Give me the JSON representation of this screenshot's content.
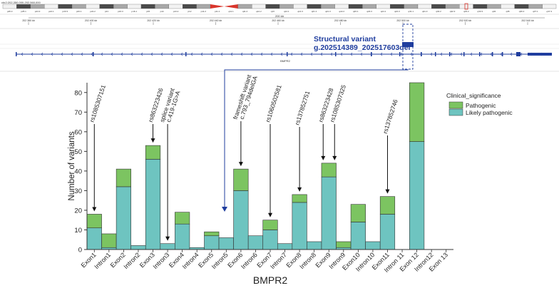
{
  "genome_browser": {
    "locus_text": "chr2:202,350,000-202,560,000",
    "scale_text": "200 kb",
    "gene_label": "BMPR2",
    "ideogram_bands": [
      "p25.3",
      "p25.1",
      "p24.3",
      "p24.1",
      "p23.3",
      "p23.1",
      "p22.2",
      "p21",
      "p16.3",
      "p16.1",
      "p15",
      "p14",
      "p13.2",
      "p12",
      "p11.2",
      "p11.1",
      "q11.1",
      "q11.2",
      "q12.2",
      "q13",
      "q14.1",
      "q14.3",
      "q21.1",
      "q21.3",
      "q22.2",
      "q23.1",
      "q23.3",
      "q24.1",
      "q24.3",
      "q31.1",
      "q31.3",
      "q32.2",
      "q32.3",
      "q33.2",
      "q33.3",
      "q34",
      "q35",
      "q36.2",
      "q37.1",
      "q37.3"
    ],
    "ruler_ticks": [
      "202 380 kb",
      "202 400 kb",
      "202 420 kb",
      "202 440 kb",
      "202 460 kb",
      "202 480 kb",
      "202 500 kb",
      "202 520 kb",
      "202 540 kb"
    ],
    "structural_variant_title": "Structural variant",
    "structural_variant_name": "g.202514389_202517603del"
  },
  "chart_data": {
    "type": "bar",
    "stacked": true,
    "xlabel": "BMPR2",
    "ylabel": "Number of variants",
    "ylim": [
      0,
      85
    ],
    "yticks": [
      0,
      10,
      20,
      30,
      40,
      50,
      60,
      70,
      80
    ],
    "categories": [
      "Exon1",
      "Intron1",
      "Exon2",
      "Intron2",
      "Exon3",
      "Intron3",
      "Exon4",
      "Intron4",
      "Exon5",
      "Intron5",
      "Exon6",
      "Intron6",
      "Exon7",
      "Intron7",
      "Exon8",
      "Intron8",
      "Exon9",
      "Intron9",
      "Exon10",
      "Intron10",
      "Exon11",
      "Intron 11",
      "Exon 12",
      "Intron12",
      "Exon 13"
    ],
    "series": [
      {
        "name": "Likely pathogenic",
        "color": "#6ec4c0",
        "values": [
          11,
          1,
          32,
          2,
          46,
          3,
          13,
          1,
          7,
          6,
          30,
          7,
          10,
          3,
          24,
          4,
          37,
          1,
          14,
          4,
          18,
          0,
          55,
          0,
          0
        ]
      },
      {
        "name": "Pathogenic",
        "color": "#7cc461",
        "values": [
          7,
          7,
          9,
          0,
          7,
          0,
          6,
          0,
          2,
          0,
          11,
          0,
          5,
          0,
          4,
          0,
          7,
          3,
          9,
          0,
          9,
          0,
          30,
          0,
          0
        ]
      }
    ],
    "legend_title": "Clinical_significance",
    "legend_entries": [
      "Pathogenic",
      "Likely pathogenic"
    ],
    "annotations": [
      {
        "text": "rs1085307151",
        "category": "Exon1"
      },
      {
        "text": "rs863223426",
        "category": "Exon3"
      },
      {
        "text": "splice variant c.419-1G>A",
        "category": "Intron3"
      },
      {
        "text": "frameshift variant c.793_794delGA",
        "category": "Exon6"
      },
      {
        "text": "rs1060502581",
        "category": "Exon7"
      },
      {
        "text": "rs137852751",
        "category": "Exon8"
      },
      {
        "text": "rs863223428",
        "category": "Exon9"
      },
      {
        "text": "rs1085307325",
        "category": "Exon9"
      },
      {
        "text": "rs137852746",
        "category": "Exon11"
      }
    ]
  }
}
